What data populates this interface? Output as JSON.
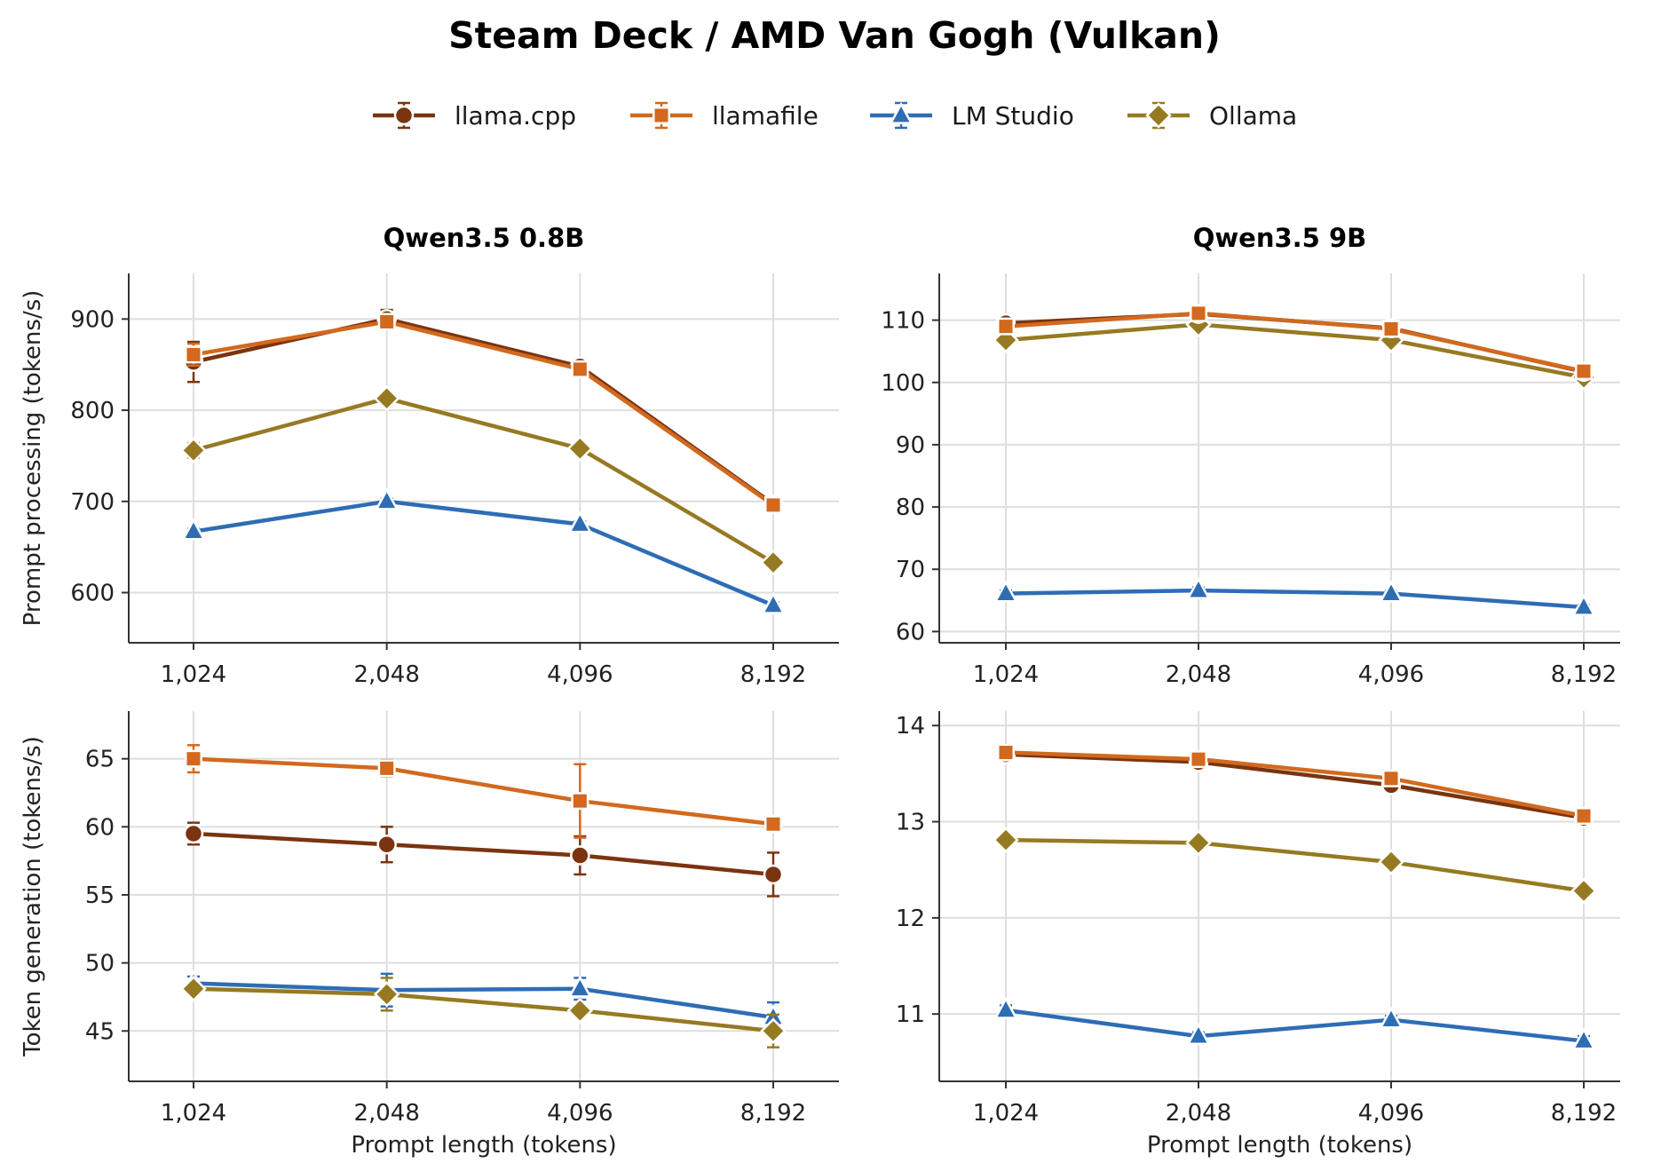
{
  "figure": {
    "title": "Steam Deck / AMD Van Gogh (Vulkan)"
  },
  "legend": [
    {
      "name": "llama.cpp",
      "color": "#7a3410",
      "marker": "circle"
    },
    {
      "name": "llamafile",
      "color": "#d2691e",
      "marker": "square"
    },
    {
      "name": "LM Studio",
      "color": "#2e6db4",
      "marker": "triangle"
    },
    {
      "name": "Ollama",
      "color": "#967a22",
      "marker": "diamond"
    }
  ],
  "chart_data": [
    {
      "type": "line",
      "title": "Qwen3.5 0.8B",
      "xlabel": "",
      "ylabel": "Prompt processing (tokens/s)",
      "categories": [
        "1,024",
        "2,048",
        "4,096",
        "8,192"
      ],
      "ylim": [
        545,
        950
      ],
      "yticks": [
        600,
        700,
        800,
        900
      ],
      "grid": true,
      "series": [
        {
          "name": "llama.cpp",
          "values": [
            853,
            900,
            848,
            697
          ],
          "errors": [
            22,
            10,
            4,
            4
          ]
        },
        {
          "name": "llamafile",
          "values": [
            861,
            897,
            845,
            696
          ],
          "errors": [
            12,
            8,
            4,
            4
          ]
        },
        {
          "name": "LM Studio",
          "values": [
            667,
            700,
            675,
            586
          ],
          "errors": [
            3,
            3,
            3,
            3
          ]
        },
        {
          "name": "Ollama",
          "values": [
            756,
            813,
            758,
            633
          ],
          "errors": [
            8,
            4,
            3,
            3
          ]
        }
      ]
    },
    {
      "type": "line",
      "title": "Qwen3.5 9B",
      "xlabel": "",
      "ylabel": "",
      "categories": [
        "1,024",
        "2,048",
        "4,096",
        "8,192"
      ],
      "ylim": [
        58.2,
        117.5
      ],
      "yticks": [
        60,
        70,
        80,
        90,
        100,
        110
      ],
      "grid": true,
      "series": [
        {
          "name": "llama.cpp",
          "values": [
            109.5,
            111.0,
            108.7,
            101.7
          ],
          "errors": [
            0.4,
            0.3,
            0.3,
            0.3
          ]
        },
        {
          "name": "llamafile",
          "values": [
            109.0,
            111.1,
            108.6,
            101.8
          ],
          "errors": [
            0.4,
            0.3,
            0.3,
            0.3
          ]
        },
        {
          "name": "LM Studio",
          "values": [
            66.1,
            66.6,
            66.1,
            63.9
          ],
          "errors": [
            0.5,
            0.5,
            0.4,
            0.4
          ]
        },
        {
          "name": "Ollama",
          "values": [
            106.8,
            109.3,
            106.8,
            100.8
          ],
          "errors": [
            0.4,
            0.4,
            0.3,
            0.3
          ]
        }
      ]
    },
    {
      "type": "line",
      "title": "",
      "xlabel": "Prompt length (tokens)",
      "ylabel": "Token generation (tokens/s)",
      "categories": [
        "1,024",
        "2,048",
        "4,096",
        "8,192"
      ],
      "ylim": [
        41.3,
        68.5
      ],
      "yticks": [
        45,
        50,
        55,
        60,
        65
      ],
      "grid": true,
      "series": [
        {
          "name": "llama.cpp",
          "values": [
            59.5,
            58.7,
            57.9,
            56.5
          ],
          "errors": [
            0.8,
            1.3,
            1.4,
            1.6
          ]
        },
        {
          "name": "llamafile",
          "values": [
            65.0,
            64.3,
            61.9,
            60.2
          ],
          "errors": [
            1.0,
            0.6,
            2.7,
            0.4
          ]
        },
        {
          "name": "LM Studio",
          "values": [
            48.5,
            48.0,
            48.1,
            46.0
          ],
          "errors": [
            0.5,
            1.2,
            0.8,
            1.1
          ]
        },
        {
          "name": "Ollama",
          "values": [
            48.1,
            47.7,
            46.5,
            45.0
          ],
          "errors": [
            0.4,
            1.2,
            0.3,
            1.2
          ]
        }
      ]
    },
    {
      "type": "line",
      "title": "",
      "xlabel": "Prompt length (tokens)",
      "ylabel": "",
      "categories": [
        "1,024",
        "2,048",
        "4,096",
        "8,192"
      ],
      "ylim": [
        10.3,
        14.15
      ],
      "yticks": [
        11,
        12,
        13,
        14
      ],
      "grid": true,
      "series": [
        {
          "name": "llama.cpp",
          "values": [
            13.7,
            13.62,
            13.38,
            13.04
          ],
          "errors": [
            0.03,
            0.03,
            0.05,
            0.03
          ]
        },
        {
          "name": "llamafile",
          "values": [
            13.72,
            13.65,
            13.45,
            13.06
          ],
          "errors": [
            0.03,
            0.03,
            0.03,
            0.03
          ]
        },
        {
          "name": "LM Studio",
          "values": [
            11.04,
            10.77,
            10.94,
            10.72
          ],
          "errors": [
            0.05,
            0.04,
            0.04,
            0.05
          ]
        },
        {
          "name": "Ollama",
          "values": [
            12.81,
            12.78,
            12.58,
            12.28
          ],
          "errors": [
            0.03,
            0.03,
            0.03,
            0.05
          ]
        }
      ]
    }
  ]
}
